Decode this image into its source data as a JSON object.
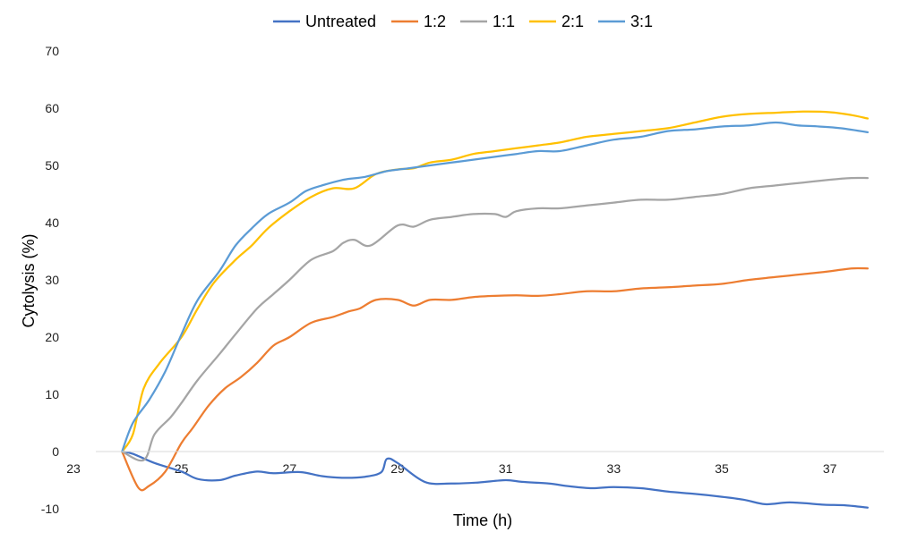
{
  "chart_data": {
    "type": "line",
    "title": "",
    "xlabel": "Time (h)",
    "ylabel": "Cytolysis (%)",
    "xlim": [
      23,
      38
    ],
    "ylim": [
      -10,
      70
    ],
    "xticks": [
      23,
      25,
      27,
      29,
      31,
      33,
      35,
      37
    ],
    "yticks": [
      -10,
      0,
      10,
      20,
      30,
      40,
      50,
      60,
      70
    ],
    "legend_position": "top",
    "grid": false,
    "series": [
      {
        "name": "Untreated",
        "color": "#4472C4",
        "x": [
          23.9,
          24.1,
          24.5,
          25.0,
          25.3,
          25.7,
          26.0,
          26.4,
          26.7,
          27.2,
          27.6,
          28.0,
          28.4,
          28.7,
          28.8,
          29.0,
          29.5,
          30.0,
          30.5,
          31.0,
          31.3,
          31.8,
          32.2,
          32.6,
          33.0,
          33.5,
          34.0,
          34.5,
          35.0,
          35.4,
          35.8,
          36.2,
          36.5,
          36.9,
          37.3,
          37.7
        ],
        "y": [
          0,
          -0.4,
          -2.0,
          -3.5,
          -4.8,
          -5.0,
          -4.2,
          -3.5,
          -3.8,
          -3.6,
          -4.3,
          -4.6,
          -4.4,
          -3.6,
          -1.3,
          -2.0,
          -5.3,
          -5.6,
          -5.4,
          -5.0,
          -5.3,
          -5.6,
          -6.1,
          -6.4,
          -6.2,
          -6.4,
          -7.0,
          -7.4,
          -7.9,
          -8.4,
          -9.2,
          -8.9,
          -9.0,
          -9.3,
          -9.4,
          -9.8
        ]
      },
      {
        "name": "1:2",
        "color": "#ED7D31",
        "x": [
          23.9,
          24.2,
          24.4,
          24.7,
          25.0,
          25.2,
          25.5,
          25.8,
          26.1,
          26.4,
          26.7,
          27.0,
          27.4,
          27.8,
          28.1,
          28.3,
          28.6,
          29.0,
          29.3,
          29.6,
          30.0,
          30.4,
          30.8,
          31.2,
          31.6,
          32.0,
          32.5,
          33.0,
          33.5,
          34.0,
          34.5,
          35.0,
          35.5,
          36.0,
          36.5,
          37.0,
          37.4,
          37.7
        ],
        "y": [
          0,
          -6.3,
          -6.0,
          -3.5,
          1.5,
          4.0,
          8.0,
          11.0,
          13.0,
          15.5,
          18.5,
          20.0,
          22.5,
          23.5,
          24.5,
          25.0,
          26.5,
          26.5,
          25.5,
          26.5,
          26.5,
          27.0,
          27.2,
          27.3,
          27.2,
          27.5,
          28.0,
          28.0,
          28.5,
          28.7,
          29.0,
          29.3,
          30.0,
          30.5,
          31.0,
          31.5,
          32.0,
          32.0
        ]
      },
      {
        "name": "1:1",
        "color": "#A5A5A5",
        "x": [
          23.9,
          24.3,
          24.5,
          24.8,
          25.0,
          25.3,
          25.7,
          26.0,
          26.4,
          26.7,
          27.0,
          27.4,
          27.8,
          28.0,
          28.2,
          28.5,
          29.0,
          29.3,
          29.6,
          30.0,
          30.4,
          30.8,
          31.0,
          31.2,
          31.6,
          32.0,
          32.5,
          33.0,
          33.5,
          34.0,
          34.5,
          35.0,
          35.5,
          36.0,
          36.5,
          37.0,
          37.4,
          37.7
        ],
        "y": [
          0,
          -1.5,
          3.0,
          6.0,
          8.5,
          12.5,
          17.0,
          20.5,
          25.0,
          27.5,
          30.0,
          33.5,
          35.0,
          36.5,
          37.0,
          36.0,
          39.5,
          39.3,
          40.5,
          41.0,
          41.5,
          41.5,
          41.0,
          42.0,
          42.5,
          42.5,
          43.0,
          43.5,
          44.0,
          44.0,
          44.5,
          45.0,
          46.0,
          46.5,
          47.0,
          47.5,
          47.8,
          47.8
        ]
      },
      {
        "name": "2:1",
        "color": "#FFC000",
        "x": [
          23.9,
          24.1,
          24.3,
          24.6,
          25.0,
          25.3,
          25.6,
          26.0,
          26.3,
          26.6,
          27.0,
          27.4,
          27.8,
          28.2,
          28.6,
          29.0,
          29.3,
          29.6,
          30.0,
          30.4,
          30.8,
          31.2,
          31.6,
          32.0,
          32.5,
          33.0,
          33.5,
          34.0,
          34.5,
          35.0,
          35.5,
          36.0,
          36.5,
          37.0,
          37.4,
          37.7
        ],
        "y": [
          0,
          3.0,
          11.0,
          15.5,
          20.0,
          25.0,
          29.5,
          33.5,
          36.0,
          39.0,
          42.0,
          44.5,
          46.0,
          46.0,
          48.5,
          49.3,
          49.5,
          50.5,
          51.0,
          52.0,
          52.5,
          53.0,
          53.5,
          54.0,
          55.0,
          55.5,
          56.0,
          56.5,
          57.5,
          58.5,
          59.0,
          59.2,
          59.4,
          59.3,
          58.8,
          58.2
        ]
      },
      {
        "name": "3:1",
        "color": "#5B9BD5",
        "x": [
          23.9,
          24.1,
          24.4,
          24.7,
          25.0,
          25.3,
          25.7,
          26.0,
          26.3,
          26.6,
          27.0,
          27.3,
          27.6,
          28.0,
          28.4,
          28.8,
          29.2,
          29.6,
          30.0,
          30.4,
          30.8,
          31.2,
          31.6,
          32.0,
          32.5,
          33.0,
          33.5,
          34.0,
          34.5,
          35.0,
          35.5,
          36.0,
          36.4,
          36.8,
          37.2,
          37.7
        ],
        "y": [
          0,
          5.0,
          9.0,
          14.0,
          20.5,
          26.5,
          31.5,
          36.0,
          39.0,
          41.5,
          43.5,
          45.5,
          46.5,
          47.5,
          48.0,
          49.0,
          49.5,
          50.0,
          50.5,
          51.0,
          51.5,
          52.0,
          52.5,
          52.5,
          53.5,
          54.5,
          55.0,
          56.0,
          56.3,
          56.8,
          57.0,
          57.5,
          57.0,
          56.8,
          56.5,
          55.8
        ]
      }
    ]
  }
}
